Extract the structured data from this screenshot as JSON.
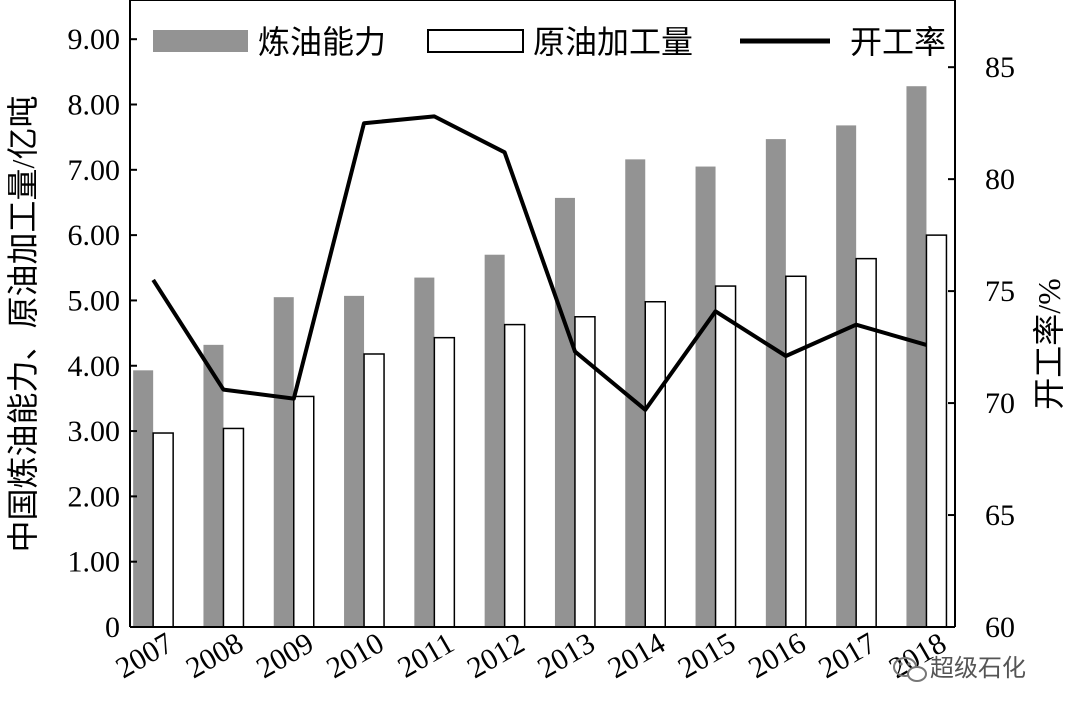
{
  "chart_data": {
    "type": "bar",
    "categories": [
      "2007",
      "2008",
      "2009",
      "2010",
      "2011",
      "2012",
      "2013",
      "2014",
      "2015",
      "2016",
      "2017",
      "2018"
    ],
    "series": [
      {
        "name": "炼油能力",
        "type": "bar",
        "axis": "left",
        "color": "#939393",
        "values": [
          3.93,
          4.32,
          5.05,
          5.07,
          5.35,
          5.7,
          6.57,
          7.16,
          7.05,
          7.47,
          7.68,
          8.28
        ]
      },
      {
        "name": "原油加工量",
        "type": "bar",
        "axis": "left",
        "color": "#ffffff",
        "values": [
          2.97,
          3.04,
          3.53,
          4.18,
          4.43,
          4.63,
          4.75,
          4.98,
          5.22,
          5.37,
          5.64,
          6.0
        ]
      },
      {
        "name": "开工率",
        "type": "line",
        "axis": "right",
        "color": "#000000",
        "values": [
          75.5,
          70.6,
          70.2,
          82.5,
          82.8,
          81.2,
          72.3,
          69.7,
          74.1,
          72.1,
          73.5,
          72.6
        ]
      }
    ],
    "y_left": {
      "label": "中国炼油能力、原油加工量/亿吨",
      "range": [
        0,
        9.6
      ],
      "ticks": [
        "0",
        "1.00",
        "2.00",
        "3.00",
        "4.00",
        "5.00",
        "6.00",
        "7.00",
        "8.00",
        "9.00"
      ]
    },
    "y_right": {
      "label": "开工率/%",
      "range": [
        60,
        88
      ],
      "ticks": [
        "60",
        "65",
        "70",
        "75",
        "80",
        "85"
      ]
    },
    "legend_position": "top",
    "grid": false
  },
  "watermark": {
    "icon": "wechat-icon",
    "text": "超级石化"
  }
}
